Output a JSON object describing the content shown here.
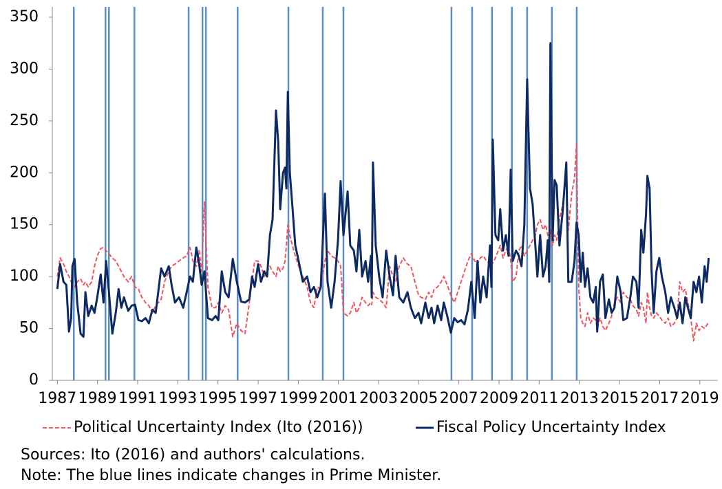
{
  "chart_data": {
    "type": "line",
    "x": [
      1987.0,
      1987.14,
      1987.31,
      1987.45,
      1987.58,
      1987.69,
      1987.75,
      1987.86,
      1987.99,
      1988.16,
      1988.3,
      1988.4,
      1988.54,
      1988.71,
      1988.85,
      1988.99,
      1989.16,
      1989.3,
      1989.43,
      1989.57,
      1989.74,
      1989.91,
      1990.05,
      1990.19,
      1990.32,
      1990.53,
      1990.7,
      1990.87,
      1991.04,
      1991.21,
      1991.39,
      1991.56,
      1991.73,
      1991.9,
      1992.17,
      1992.34,
      1992.55,
      1992.69,
      1992.86,
      1993.06,
      1993.27,
      1993.44,
      1993.61,
      1993.75,
      1993.92,
      1994.06,
      1994.19,
      1994.33,
      1994.5,
      1994.71,
      1994.88,
      1995.02,
      1995.19,
      1995.36,
      1995.53,
      1995.74,
      1995.94,
      1996.15,
      1996.35,
      1996.56,
      1996.7,
      1996.83,
      1997.0,
      1997.14,
      1997.31,
      1997.45,
      1997.59,
      1997.72,
      1997.89,
      1998.0,
      1998.1,
      1998.24,
      1998.34,
      1998.41,
      1998.48,
      1998.58,
      1998.68,
      1998.85,
      1999.02,
      1999.23,
      1999.44,
      1999.61,
      1999.78,
      1999.95,
      2000.12,
      2000.33,
      2000.46,
      2000.64,
      2000.81,
      2000.98,
      2001.11,
      2001.25,
      2001.46,
      2001.59,
      2001.77,
      2001.9,
      2002.04,
      2002.18,
      2002.35,
      2002.48,
      2002.62,
      2002.66,
      2002.72,
      2002.86,
      2003.03,
      2003.2,
      2003.38,
      2003.55,
      2003.72,
      2003.85,
      2004.03,
      2004.23,
      2004.44,
      2004.61,
      2004.81,
      2004.99,
      2005.12,
      2005.33,
      2005.5,
      2005.64,
      2005.77,
      2005.94,
      2006.12,
      2006.25,
      2006.42,
      2006.6,
      2006.77,
      2006.94,
      2007.11,
      2007.28,
      2007.45,
      2007.62,
      2007.79,
      2007.93,
      2008.07,
      2008.21,
      2008.38,
      2008.55,
      2008.62,
      2008.69,
      2008.82,
      2008.96,
      2009.06,
      2009.2,
      2009.34,
      2009.47,
      2009.58,
      2009.68,
      2009.85,
      2009.99,
      2010.12,
      2010.26,
      2010.4,
      2010.54,
      2010.67,
      2010.81,
      2010.91,
      2011.05,
      2011.19,
      2011.32,
      2011.43,
      2011.5,
      2011.56,
      2011.67,
      2011.77,
      2011.87,
      2012.01,
      2012.18,
      2012.35,
      2012.45,
      2012.62,
      2012.76,
      2012.86,
      2012.97,
      2013.07,
      2013.17,
      2013.28,
      2013.41,
      2013.55,
      2013.69,
      2013.82,
      2013.89,
      2014.03,
      2014.17,
      2014.3,
      2014.47,
      2014.61,
      2014.75,
      2014.89,
      2015.06,
      2015.19,
      2015.37,
      2015.54,
      2015.67,
      2015.84,
      2015.95,
      2016.08,
      2016.19,
      2016.32,
      2016.39,
      2016.5,
      2016.6,
      2016.7,
      2016.84,
      2016.98,
      2017.11,
      2017.28,
      2017.42,
      2017.56,
      2017.73,
      2017.87,
      2018.0,
      2018.14,
      2018.28,
      2018.41,
      2018.55,
      2018.69,
      2018.83,
      2018.96,
      2019.1,
      2019.24,
      2019.34,
      2019.44
    ],
    "series": [
      {
        "name": "Political Uncertainty Index (Ito (2016))",
        "color": "#f0545f",
        "dashed": true,
        "values": [
          100,
          118,
          112,
          105,
          100,
          95,
          92,
          90,
          95,
          98,
          92,
          95,
          90,
          95,
          110,
          120,
          127,
          128,
          125,
          122,
          118,
          115,
          110,
          105,
          100,
          95,
          100,
          90,
          88,
          80,
          75,
          72,
          65,
          72,
          78,
          95,
          105,
          110,
          112,
          115,
          118,
          120,
          128,
          115,
          110,
          125,
          105,
          172,
          90,
          70,
          70,
          75,
          65,
          72,
          68,
          42,
          55,
          48,
          45,
          75,
          95,
          115,
          115,
          110,
          100,
          105,
          110,
          105,
          100,
          110,
          105,
          108,
          115,
          130,
          150,
          140,
          132,
          120,
          110,
          100,
          90,
          75,
          70,
          90,
          88,
          115,
          125,
          120,
          118,
          115,
          110,
          65,
          62,
          65,
          75,
          65,
          70,
          80,
          75,
          72,
          75,
          73,
          85,
          80,
          78,
          75,
          70,
          110,
          100,
          95,
          110,
          118,
          112,
          110,
          95,
          82,
          80,
          78,
          85,
          80,
          88,
          90,
          95,
          100,
          92,
          82,
          75,
          85,
          95,
          105,
          115,
          122,
          115,
          112,
          118,
          120,
          115,
          112,
          115,
          113,
          118,
          125,
          130,
          118,
          125,
          130,
          115,
          95,
          100,
          125,
          130,
          120,
          125,
          130,
          135,
          140,
          150,
          155,
          145,
          150,
          140,
          135,
          145,
          130,
          140,
          135,
          155,
          170,
          200,
          145,
          180,
          195,
          228,
          90,
          60,
          55,
          52,
          65,
          55,
          60,
          58,
          50,
          60,
          52,
          48,
          55,
          62,
          75,
          80,
          75,
          85,
          80,
          78,
          72,
          68,
          62,
          75,
          70,
          55,
          85,
          70,
          62,
          60,
          65,
          62,
          58,
          55,
          60,
          52,
          55,
          60,
          95,
          85,
          88,
          75,
          60,
          38,
          55,
          48,
          52,
          50,
          53,
          56
        ]
      },
      {
        "name": "Fiscal Policy Uncertainty Index",
        "color": "#0d2a63",
        "dashed": false,
        "values": [
          88,
          112,
          95,
          92,
          47,
          60,
          110,
          117,
          75,
          45,
          42,
          85,
          62,
          72,
          65,
          80,
          102,
          75,
          115,
          85,
          45,
          65,
          88,
          70,
          80,
          67,
          72,
          73,
          58,
          57,
          60,
          55,
          68,
          65,
          108,
          100,
          110,
          92,
          75,
          80,
          70,
          85,
          100,
          95,
          128,
          113,
          92,
          105,
          60,
          58,
          62,
          58,
          105,
          85,
          80,
          117,
          95,
          76,
          75,
          78,
          100,
          90,
          112,
          95,
          105,
          100,
          140,
          155,
          260,
          230,
          165,
          200,
          205,
          185,
          278,
          200,
          175,
          130,
          115,
          95,
          100,
          85,
          90,
          80,
          90,
          180,
          95,
          70,
          95,
          135,
          192,
          140,
          182,
          130,
          125,
          105,
          145,
          100,
          115,
          95,
          120,
          80,
          210,
          130,
          100,
          80,
          125,
          100,
          82,
          120,
          80,
          75,
          85,
          70,
          60,
          65,
          55,
          75,
          60,
          70,
          55,
          72,
          58,
          75,
          62,
          46,
          60,
          56,
          58,
          54,
          68,
          95,
          60,
          115,
          75,
          100,
          80,
          130,
          90,
          232,
          140,
          135,
          165,
          125,
          140,
          120,
          203,
          115,
          125,
          120,
          110,
          150,
          290,
          185,
          170,
          130,
          100,
          140,
          100,
          110,
          135,
          95,
          325,
          135,
          193,
          188,
          130,
          165,
          210,
          95,
          95,
          115,
          152,
          140,
          95,
          123,
          90,
          108,
          80,
          75,
          90,
          47,
          95,
          102,
          60,
          78,
          65,
          70,
          100,
          85,
          58,
          60,
          80,
          100,
          95,
          70,
          145,
          123,
          160,
          197,
          185,
          105,
          65,
          105,
          118,
          100,
          85,
          65,
          80,
          70,
          60,
          75,
          55,
          80,
          70,
          60,
          95,
          85,
          100,
          75,
          110,
          95,
          118
        ]
      }
    ],
    "pm_changes": [
      1987.82,
      1989.4,
      1989.57,
      1990.84,
      1993.54,
      1994.23,
      1994.4,
      1995.98,
      1998.51,
      2000.22,
      2001.25,
      2006.63,
      2007.66,
      2008.65,
      2009.64,
      2010.4,
      2011.63,
      2012.87
    ],
    "pm_color": "#5b8ec4",
    "xlim": [
      1986.75,
      2019.9
    ],
    "ylim": [
      0,
      350
    ],
    "xticks": [
      1987,
      1989,
      1991,
      1993,
      1995,
      1997,
      1999,
      2001,
      2003,
      2005,
      2007,
      2009,
      2011,
      2013,
      2015,
      2017,
      2019
    ],
    "yticks": [
      0,
      50,
      100,
      150,
      200,
      250,
      300,
      350
    ],
    "legend": "bottom",
    "notes": [
      "Sources: Ito (2016) and authors' calculations.",
      "Note: The blue lines indicate changes in Prime Minister."
    ]
  }
}
